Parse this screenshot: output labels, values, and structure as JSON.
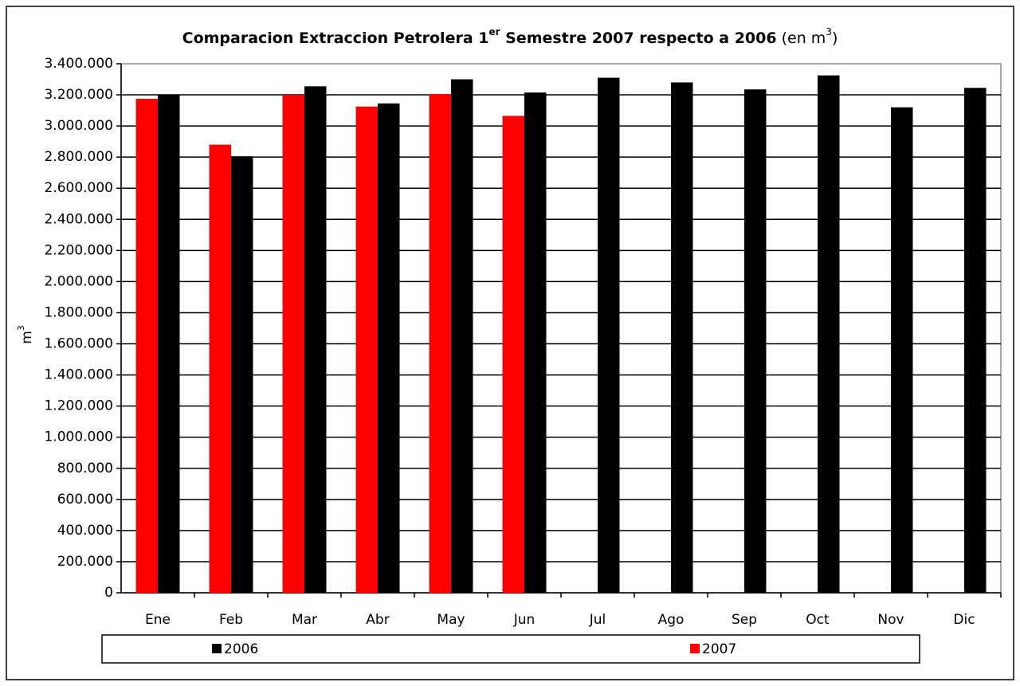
{
  "chart_data": {
    "type": "bar",
    "title_parts": [
      "Comparacion Extraccion Petrolera 1",
      "er",
      " Semestre 2007 respecto a 2006",
      " (en m",
      "3",
      ")"
    ],
    "ylabel_parts": [
      "m",
      "3"
    ],
    "categories": [
      "Ene",
      "Feb",
      "Mar",
      "Abr",
      "May",
      "Jun",
      "Jul",
      "Ago",
      "Sep",
      "Oct",
      "Nov",
      "Dic"
    ],
    "series": [
      {
        "name": "2006",
        "color": "#000000",
        "values": [
          3200000,
          2805000,
          3255000,
          3145000,
          3300000,
          3215000,
          3310000,
          3280000,
          3235000,
          3325000,
          3120000,
          3245000
        ]
      },
      {
        "name": "2007",
        "color": "#ff0000",
        "values": [
          3175000,
          2880000,
          3200000,
          3125000,
          3205000,
          3065000,
          null,
          null,
          null,
          null,
          null,
          null
        ]
      }
    ],
    "ylim": [
      0,
      3400000
    ],
    "yticks": [
      0,
      {
        "value": 200000,
        "label": "200.000"
      },
      {
        "value": 400000,
        "label": "400.000"
      },
      {
        "value": 600000,
        "label": "600.000"
      },
      {
        "value": 800000,
        "label": "800.000"
      },
      {
        "value": 1000000,
        "label": "1.000.000"
      },
      {
        "value": 1200000,
        "label": "1.200.000"
      },
      {
        "value": 1400000,
        "label": "1.400.000"
      },
      {
        "value": 1600000,
        "label": "1.600.000"
      },
      {
        "value": 1800000,
        "label": "1.800.000"
      },
      {
        "value": 2000000,
        "label": "2.000.000"
      },
      {
        "value": 2200000,
        "label": "2.200.000"
      },
      {
        "value": 2400000,
        "label": "2.400.000"
      },
      {
        "value": 2600000,
        "label": "2.600.000"
      },
      {
        "value": 2800000,
        "label": "2.800.000"
      },
      {
        "value": 3000000,
        "label": "3.000.000"
      },
      {
        "value": 3200000,
        "label": "3.200.000"
      },
      {
        "value": 3400000,
        "label": "3.400.000"
      }
    ],
    "grid": true,
    "legend": "bottom"
  }
}
